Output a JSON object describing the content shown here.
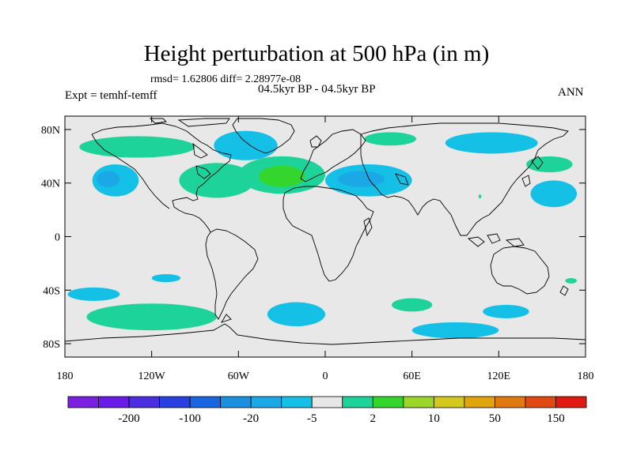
{
  "title": "Height perturbation at 500 hPa (in m)",
  "stats": "rmsd= 1.62806 diff= 2.28977e-08",
  "subtitle": "04.5kyr BP - 04.5kyr BP",
  "expt": "Expt = temhf-temff",
  "season": "ANN",
  "map_extent": {
    "lon": [
      -180,
      180
    ],
    "lat": [
      -90,
      90
    ]
  },
  "lat_ticks": [
    {
      "lat": 80,
      "label": "80N"
    },
    {
      "lat": 40,
      "label": "40N"
    },
    {
      "lat": 0,
      "label": "0"
    },
    {
      "lat": -40,
      "label": "40S"
    },
    {
      "lat": -80,
      "label": "80S"
    }
  ],
  "lon_ticks": [
    {
      "lon": -180,
      "label": "180"
    },
    {
      "lon": -120,
      "label": "120W"
    },
    {
      "lon": -60,
      "label": "60W"
    },
    {
      "lon": 0,
      "label": "0"
    },
    {
      "lon": 60,
      "label": "60E"
    },
    {
      "lon": 120,
      "label": "120E"
    },
    {
      "lon": 180,
      "label": "180"
    }
  ],
  "colorbar": {
    "colors": [
      "#7b1fe0",
      "#6a1be8",
      "#4b2ee0",
      "#2a3fe0",
      "#1a66e0",
      "#1b8fe0",
      "#1ba8e6",
      "#15c0e6",
      "#e7e7e7",
      "#1ed39a",
      "#34d62e",
      "#9cd62a",
      "#d4c81e",
      "#e0a40f",
      "#e07a10",
      "#e04a10",
      "#e01a10"
    ],
    "labels": [
      {
        "boundary": 2,
        "label": "-200"
      },
      {
        "boundary": 4,
        "label": "-100"
      },
      {
        "boundary": 6,
        "label": "-20"
      },
      {
        "boundary": 8,
        "label": "-5"
      },
      {
        "boundary": 10,
        "label": "2"
      },
      {
        "boundary": 12,
        "label": "10"
      },
      {
        "boundary": 14,
        "label": "50"
      },
      {
        "boundary": 16,
        "label": "150"
      }
    ]
  },
  "anomalies": [
    {
      "lon": -130,
      "lat": 67,
      "rx": 40,
      "ry": 8,
      "color": "#1ed39a"
    },
    {
      "lon": -55,
      "lat": 68,
      "rx": 22,
      "ry": 11,
      "color": "#15c0e6"
    },
    {
      "lon": -145,
      "lat": 42,
      "rx": 16,
      "ry": 12,
      "color": "#15c0e6"
    },
    {
      "lon": -150,
      "lat": 43,
      "rx": 8,
      "ry": 6,
      "color": "#1ba8e6"
    },
    {
      "lon": -75,
      "lat": 42,
      "rx": 26,
      "ry": 13,
      "color": "#1ed39a"
    },
    {
      "lon": -30,
      "lat": 46,
      "rx": 30,
      "ry": 14,
      "color": "#1ed39a"
    },
    {
      "lon": -30,
      "lat": 45,
      "rx": 16,
      "ry": 8,
      "color": "#34d62e"
    },
    {
      "lon": 30,
      "lat": 42,
      "rx": 30,
      "ry": 12,
      "color": "#15c0e6"
    },
    {
      "lon": 25,
      "lat": 43,
      "rx": 16,
      "ry": 6,
      "color": "#1ba8e6"
    },
    {
      "lon": 45,
      "lat": 73,
      "rx": 18,
      "ry": 5,
      "color": "#1ed39a"
    },
    {
      "lon": 115,
      "lat": 70,
      "rx": 32,
      "ry": 8,
      "color": "#15c0e6"
    },
    {
      "lon": 155,
      "lat": 54,
      "rx": 16,
      "ry": 6,
      "color": "#1ed39a"
    },
    {
      "lon": 158,
      "lat": 32,
      "rx": 16,
      "ry": 10,
      "color": "#15c0e6"
    },
    {
      "lon": 107,
      "lat": 30,
      "rx": 1,
      "ry": 1.5,
      "color": "#1ed39a"
    },
    {
      "lon": -110,
      "lat": -31,
      "rx": 10,
      "ry": 3,
      "color": "#15c0e6"
    },
    {
      "lon": -160,
      "lat": -43,
      "rx": 18,
      "ry": 5,
      "color": "#15c0e6"
    },
    {
      "lon": -120,
      "lat": -60,
      "rx": 45,
      "ry": 10,
      "color": "#1ed39a"
    },
    {
      "lon": -20,
      "lat": -58,
      "rx": 20,
      "ry": 9,
      "color": "#15c0e6"
    },
    {
      "lon": 60,
      "lat": -51,
      "rx": 14,
      "ry": 5,
      "color": "#1ed39a"
    },
    {
      "lon": 125,
      "lat": -56,
      "rx": 16,
      "ry": 5,
      "color": "#15c0e6"
    },
    {
      "lon": 90,
      "lat": -70,
      "rx": 30,
      "ry": 6,
      "color": "#15c0e6"
    },
    {
      "lon": 170,
      "lat": -33,
      "rx": 4,
      "ry": 2,
      "color": "#1ed39a"
    }
  ]
}
